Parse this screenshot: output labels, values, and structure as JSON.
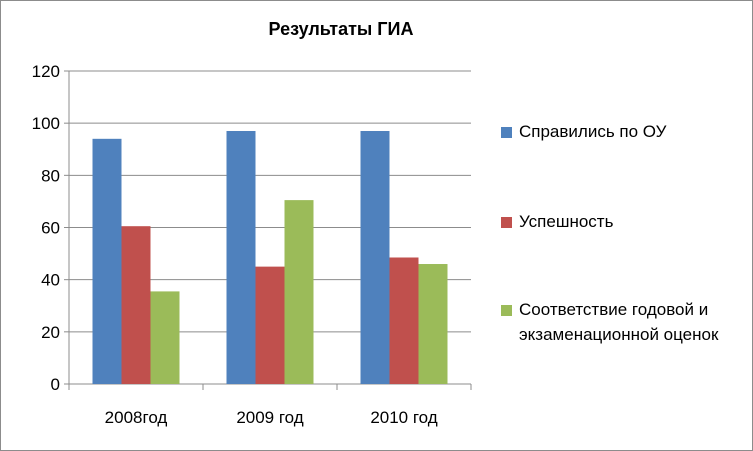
{
  "chart_data": {
    "type": "bar",
    "title": "Результаты ГИА",
    "xlabel": "",
    "ylabel": "",
    "categories": [
      "2008год",
      "2009 год",
      "2010 год"
    ],
    "ylim": [
      0,
      120
    ],
    "yticks": [
      0,
      20,
      40,
      60,
      80,
      100,
      120
    ],
    "grid": true,
    "legend_position": "right",
    "series": [
      {
        "name": "Справились по ОУ",
        "color": "#4F81BD",
        "values": [
          94,
          97,
          97
        ]
      },
      {
        "name": "Успешность",
        "color": "#C0504D",
        "values": [
          60.5,
          45,
          48.5
        ]
      },
      {
        "name": "Соответствие годовой и экзаменационной оценок",
        "color": "#9BBB59",
        "values": [
          35.5,
          70.5,
          46
        ]
      }
    ]
  }
}
